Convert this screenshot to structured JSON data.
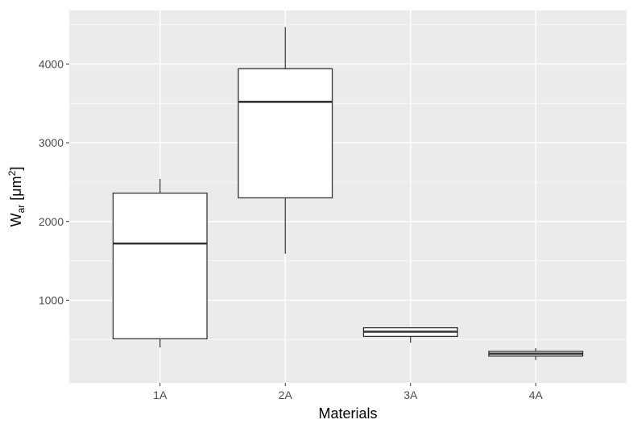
{
  "chart_data": {
    "type": "boxplot",
    "xlabel": "Materials",
    "ylabel": {
      "base": "W",
      "sub": "ar",
      "unit_open": " [μm",
      "sup": "2",
      "unit_close": "]"
    },
    "ylim": [
      -50,
      4680
    ],
    "yticks": [
      1000,
      2000,
      3000,
      4000
    ],
    "grid": true,
    "categories": [
      "1A",
      "2A",
      "3A",
      "4A"
    ],
    "boxes": [
      {
        "category": "1A",
        "whisker_low": 400,
        "q1": 510,
        "median": 1720,
        "q3": 2360,
        "whisker_high": 2540
      },
      {
        "category": "2A",
        "whisker_low": 1590,
        "q1": 2300,
        "median": 3520,
        "q3": 3940,
        "whisker_high": 4470
      },
      {
        "category": "3A",
        "whisker_low": 460,
        "q1": 540,
        "median": 600,
        "q3": 650,
        "whisker_high": 650
      },
      {
        "category": "4A",
        "whisker_low": 240,
        "q1": 290,
        "median": 320,
        "q3": 350,
        "whisker_high": 390
      }
    ],
    "colors": {
      "panel": "#ebebeb",
      "grid": "#ffffff",
      "box_fill": "#ffffff",
      "line": "#333333"
    }
  }
}
